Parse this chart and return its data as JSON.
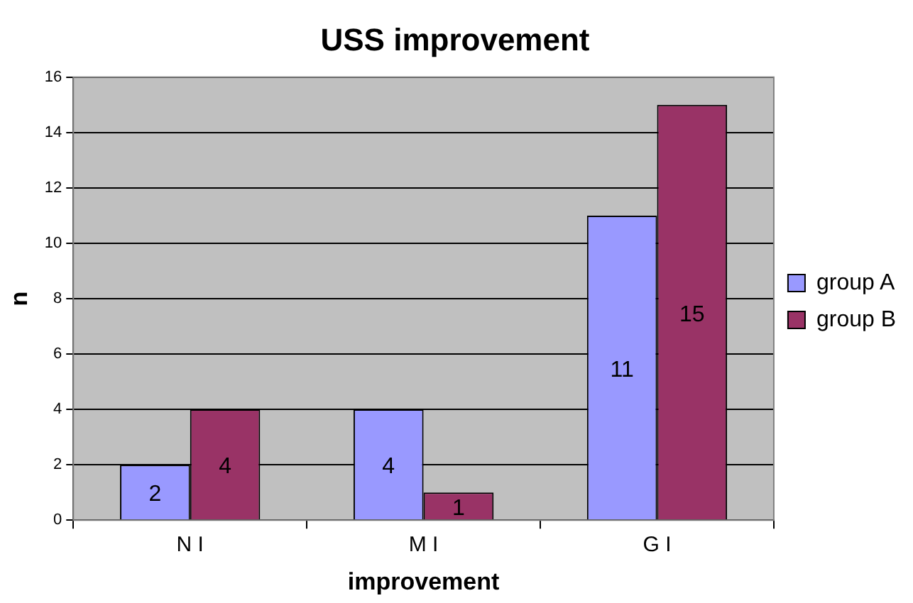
{
  "chart_data": {
    "type": "bar",
    "title": "USS improvement",
    "xlabel": "improvement",
    "ylabel": "n",
    "categories": [
      "N I",
      "M I",
      "G I"
    ],
    "series": [
      {
        "name": "group A",
        "color": "#9999ff",
        "values": [
          2,
          4,
          11
        ]
      },
      {
        "name": "group B",
        "color": "#993366",
        "values": [
          4,
          1,
          15
        ]
      }
    ],
    "ylim": [
      0,
      16
    ],
    "yticks": [
      0,
      2,
      4,
      6,
      8,
      10,
      12,
      14,
      16
    ],
    "grid": "y",
    "legend": "right",
    "data_labels": true
  }
}
